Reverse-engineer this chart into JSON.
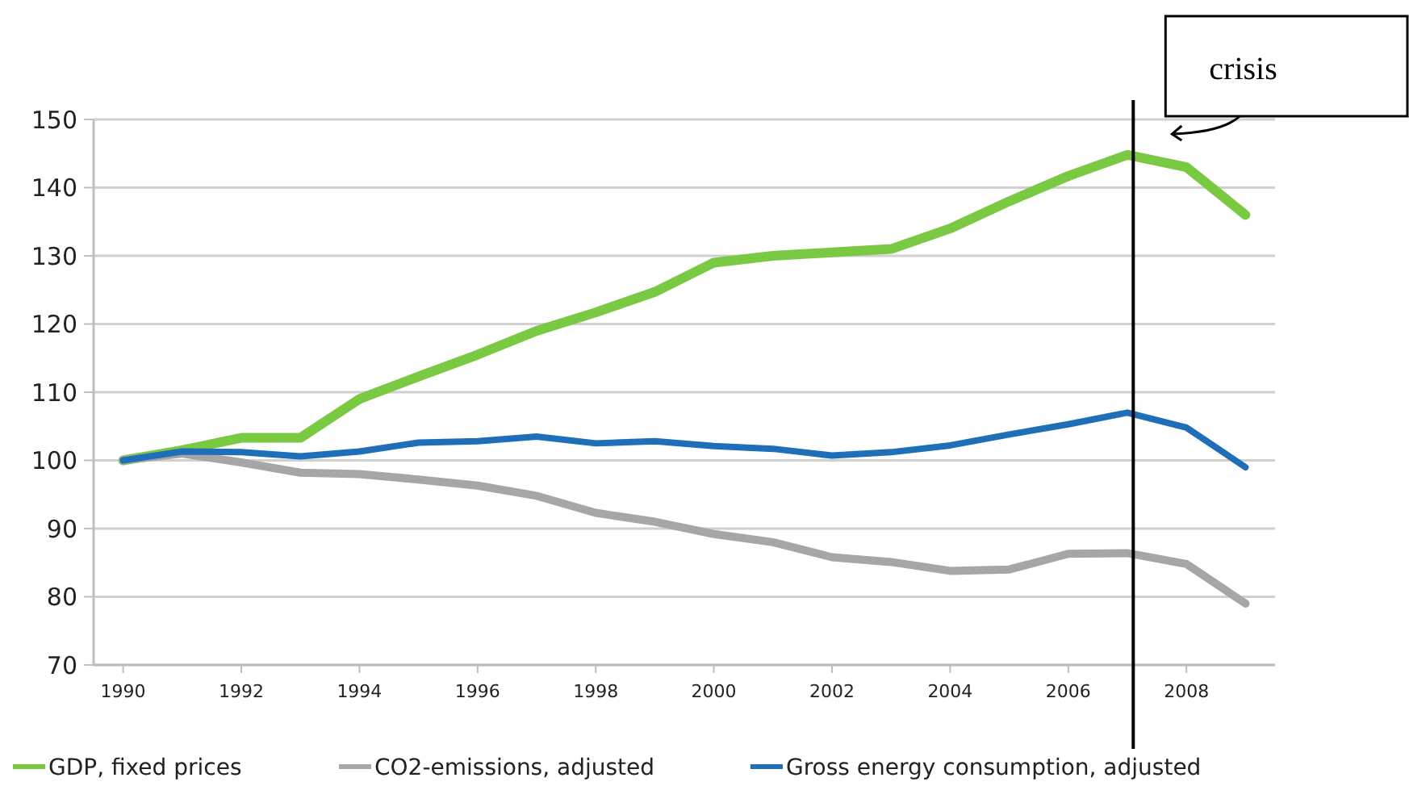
{
  "chart_data": {
    "type": "line",
    "x": [
      1990,
      1991,
      1992,
      1993,
      1994,
      1995,
      1996,
      1997,
      1998,
      1999,
      2000,
      2001,
      2002,
      2003,
      2004,
      2005,
      2006,
      2007,
      2008,
      2009
    ],
    "series": [
      {
        "name": "GDP, fixed prices",
        "color": "#7ac943",
        "values": [
          100,
          101.5,
          103.3,
          103.3,
          109,
          112.3,
          115.5,
          119,
          121.7,
          124.7,
          129,
          130,
          130.5,
          131,
          134,
          138,
          141.7,
          144.8,
          143,
          136
        ]
      },
      {
        "name": "CO2-emissions, adjusted",
        "color": "#a6a6a6",
        "values": [
          100,
          101,
          99.7,
          98.2,
          98,
          97.2,
          96.3,
          94.8,
          92.3,
          91,
          89.2,
          88,
          85.8,
          85.1,
          83.8,
          84,
          86.3,
          86.4,
          84.8,
          79
        ]
      },
      {
        "name": "Gross energy consumption, adjusted",
        "color": "#1f6fb8",
        "values": [
          100,
          101.3,
          101.2,
          100.6,
          101.3,
          102.6,
          102.8,
          103.5,
          102.5,
          102.8,
          102.1,
          101.7,
          100.7,
          101.2,
          102.2,
          103.8,
          105.3,
          107,
          104.8,
          99
        ]
      }
    ],
    "xlim": [
      1989.5,
      2009.5
    ],
    "xticks": [
      1990,
      1992,
      1994,
      1996,
      1998,
      2000,
      2002,
      2004,
      2006,
      2008
    ],
    "ylim": [
      70,
      150
    ],
    "yticks": [
      70,
      80,
      90,
      100,
      110,
      120,
      130,
      140,
      150
    ],
    "grid": "y",
    "legend": "bottom",
    "marker": "none",
    "line_style": "solid",
    "ref_lines": [
      {
        "axis": "x",
        "value": 2007.1,
        "label": "crisis",
        "color": "#000000"
      }
    ]
  }
}
